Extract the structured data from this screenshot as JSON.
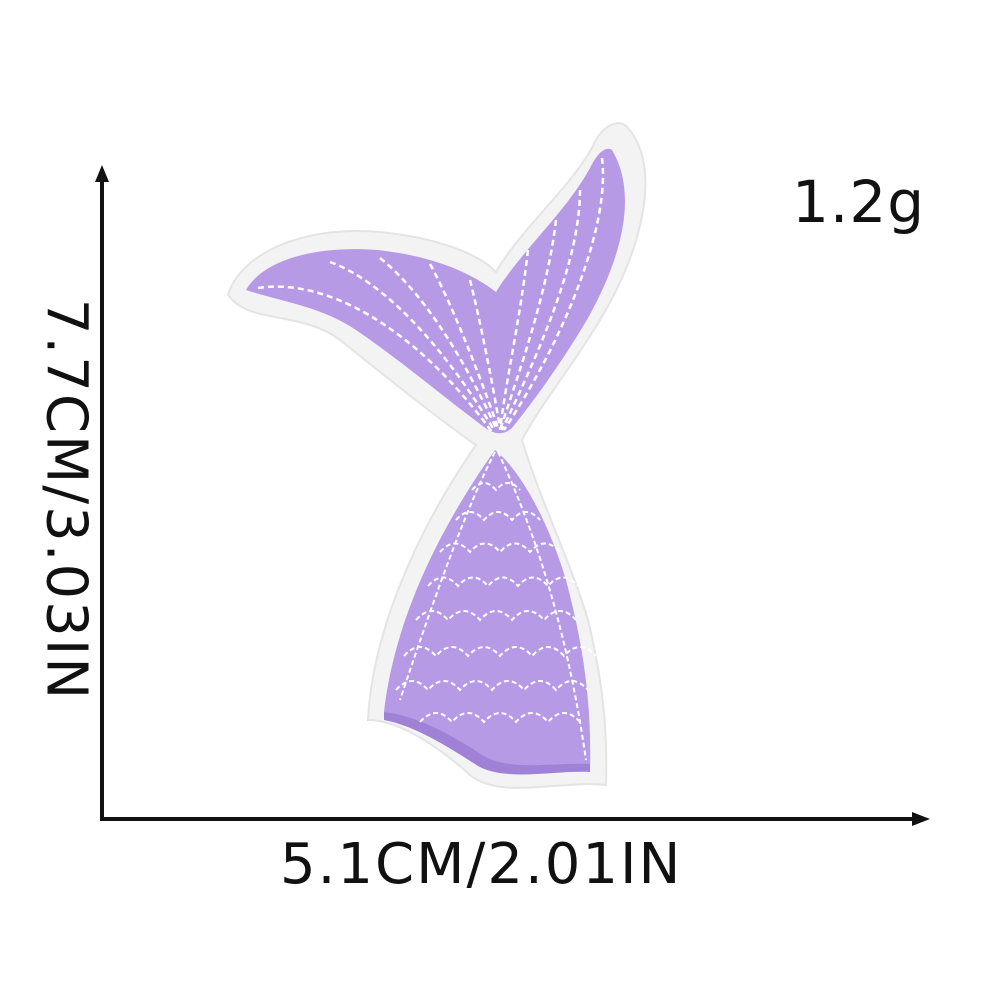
{
  "product": {
    "name": "mermaid-tail-embroidered-patch-icon",
    "colors": {
      "embroidery_fill": "#b79ae6",
      "embroidery_shade": "#9f82d6",
      "stitch_line": "#ffffff",
      "felt_border": "#f3f3f3",
      "arrow": "#111111"
    }
  },
  "dimensions": {
    "height_label": "7.7CM/3.03IN",
    "width_label": "5.1CM/2.01IN",
    "weight_label": "1.2g"
  }
}
